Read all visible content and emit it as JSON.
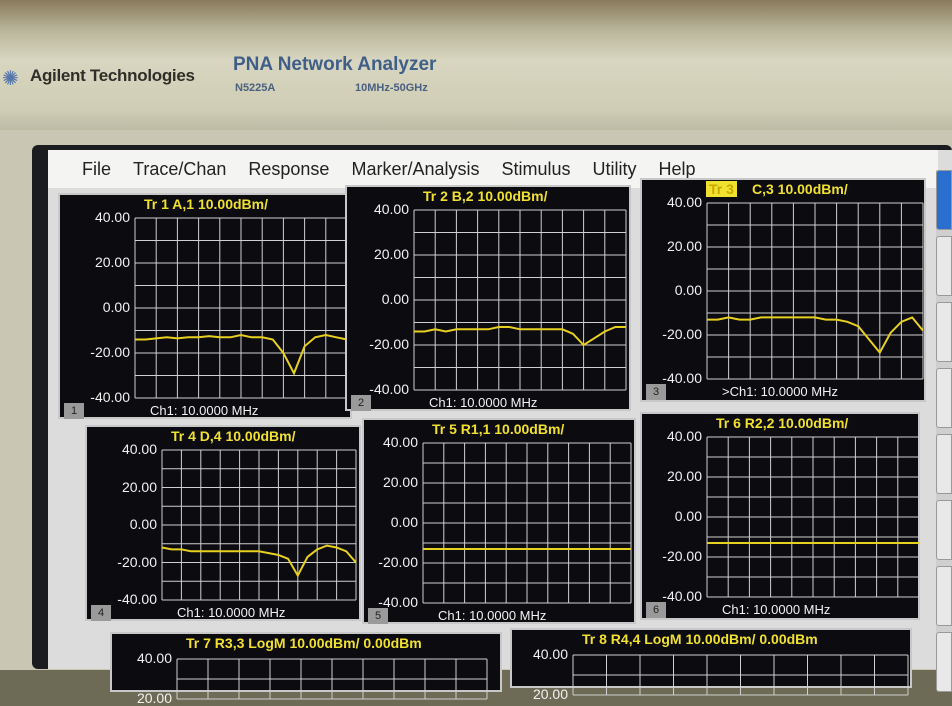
{
  "instrument": {
    "brand": "Agilent Technologies",
    "product": "PNA Network Analyzer",
    "model": "N5225A",
    "range": "10MHz-50GHz"
  },
  "menu": [
    "File",
    "Trace/Chan",
    "Response",
    "Marker/Analysis",
    "Stimulus",
    "Utility",
    "Help"
  ],
  "colors": {
    "trace": "#e8d020",
    "grid": "#d0d0d0",
    "background": "#0b0b10",
    "title": "#f0e030"
  },
  "y_ticks": [
    "40.00",
    "20.00",
    "0.00",
    "-20.00",
    "-40.00"
  ],
  "chart_data": [
    {
      "type": "line",
      "window": "1",
      "title": "Tr 1  A,1 10.00dBm/",
      "footer": "Ch1:  10.0000 MHz",
      "ylim": [
        -40,
        40
      ],
      "values": [
        -14,
        -14,
        -13.5,
        -13,
        -13.5,
        -13,
        -13,
        -12.5,
        -13,
        -13,
        -12,
        -13,
        -13,
        -14,
        -20,
        -29,
        -17,
        -13,
        -12,
        -13,
        -14
      ]
    },
    {
      "type": "line",
      "window": "2",
      "title": "Tr 2  B,2 10.00dBm/",
      "footer": "Ch1:  10.0000 MHz",
      "ylim": [
        -40,
        40
      ],
      "values": [
        -14,
        -14,
        -13,
        -14,
        -13,
        -13,
        -13,
        -13,
        -12,
        -12,
        -13,
        -13,
        -13,
        -13,
        -13,
        -15,
        -20,
        -17,
        -14,
        -12,
        -12
      ]
    },
    {
      "type": "line",
      "window": "3",
      "title": "C,3 10.00dBm/",
      "active_label": "Tr 3",
      "footer": ">Ch1:  10.0000 MHz",
      "ylim": [
        -40,
        40
      ],
      "values": [
        -13,
        -13,
        -12,
        -13,
        -13,
        -12,
        -12,
        -12,
        -12,
        -12,
        -12,
        -13,
        -13,
        -14,
        -16,
        -22,
        -28,
        -19,
        -14,
        -12,
        -18
      ]
    },
    {
      "type": "line",
      "window": "4",
      "title": "Tr 4  D,4 10.00dBm/",
      "footer": "Ch1:  10.0000 MHz",
      "ylim": [
        -40,
        40
      ],
      "values": [
        -12,
        -13,
        -13,
        -14,
        -14,
        -14,
        -14,
        -14,
        -14,
        -14,
        -14,
        -15,
        -16,
        -18,
        -27,
        -17,
        -13,
        -11,
        -12,
        -14,
        -20
      ]
    },
    {
      "type": "line",
      "window": "5",
      "title": "Tr 5  R1,1 10.00dBm/",
      "footer": "Ch1:  10.0000 MHz",
      "ylim": [
        -40,
        40
      ],
      "values": [
        -13,
        -13,
        -13,
        -13,
        -13,
        -13,
        -13,
        -13,
        -13,
        -13,
        -13,
        -13,
        -13,
        -13,
        -13,
        -13,
        -13,
        -13,
        -13,
        -13,
        -13
      ]
    },
    {
      "type": "line",
      "window": "6",
      "title": "Tr 6  R2,2 10.00dBm/",
      "footer": "Ch1:  10.0000 MHz",
      "ylim": [
        -40,
        40
      ],
      "values": [
        -13,
        -13,
        -13,
        -13,
        -13,
        -13,
        -13,
        -13,
        -13,
        -13,
        -13,
        -13,
        -13,
        -13,
        -13,
        -13,
        -13,
        -13,
        -13,
        -13,
        -13
      ]
    },
    {
      "type": "line",
      "window": "7",
      "title": "Tr 7  R3,3 LogM 10.00dBm/  0.00dBm",
      "ylim": [
        -40,
        40
      ],
      "values": []
    },
    {
      "type": "line",
      "window": "8",
      "title": "Tr 8  R4,4 LogM 10.00dBm/  0.00dBm",
      "ylim": [
        -40,
        40
      ],
      "values": []
    }
  ]
}
